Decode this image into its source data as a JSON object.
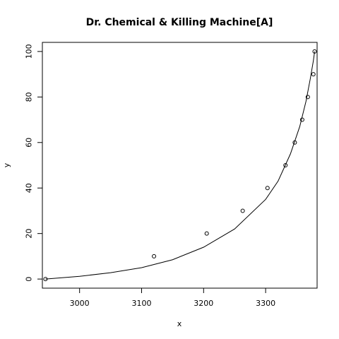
{
  "chart_data": {
    "type": "scatter",
    "title": "Dr. Chemical & Killing Machine[A]",
    "xlabel": "x",
    "ylabel": "y",
    "xlim": [
      2940,
      3383
    ],
    "ylim": [
      -4,
      104
    ],
    "x_ticks": [
      3000,
      3100,
      3200,
      3300
    ],
    "y_ticks": [
      0,
      20,
      40,
      60,
      80,
      100
    ],
    "grid": false,
    "series": [
      {
        "points": [
          {
            "x": 2945,
            "y": 0
          },
          {
            "x": 3120,
            "y": 10
          },
          {
            "x": 3205,
            "y": 20
          },
          {
            "x": 3263,
            "y": 30
          },
          {
            "x": 3303,
            "y": 40
          },
          {
            "x": 3332,
            "y": 50
          },
          {
            "x": 3347,
            "y": 60
          },
          {
            "x": 3359,
            "y": 70
          },
          {
            "x": 3368,
            "y": 80
          },
          {
            "x": 3377,
            "y": 90
          },
          {
            "x": 3379,
            "y": 100
          }
        ]
      },
      {
        "type": "line",
        "points": [
          {
            "x": 2945,
            "y": 0
          },
          {
            "x": 3000,
            "y": 1.2
          },
          {
            "x": 3050,
            "y": 2.8
          },
          {
            "x": 3100,
            "y": 5
          },
          {
            "x": 3150,
            "y": 8.5
          },
          {
            "x": 3200,
            "y": 14
          },
          {
            "x": 3250,
            "y": 22
          },
          {
            "x": 3300,
            "y": 35
          },
          {
            "x": 3320,
            "y": 43
          },
          {
            "x": 3340,
            "y": 55
          },
          {
            "x": 3355,
            "y": 67
          },
          {
            "x": 3365,
            "y": 78
          },
          {
            "x": 3372,
            "y": 88
          },
          {
            "x": 3377,
            "y": 96
          },
          {
            "x": 3379,
            "y": 100
          }
        ]
      }
    ]
  }
}
